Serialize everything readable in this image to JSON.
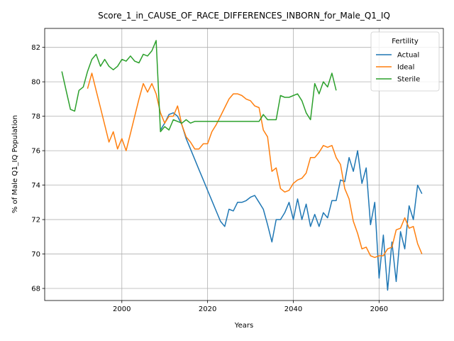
{
  "chart_data": {
    "type": "line",
    "title": "Score_1_in_CAUSE_OF_RACE_DIFFERENCES_INBORN_for_Male_Q1_IQ",
    "xlabel": "Years",
    "ylabel": "% of Male Q1_IQ Population",
    "xlim": [
      1982,
      2075
    ],
    "ylim": [
      67.3,
      83.1
    ],
    "xticks": [
      2000,
      2020,
      2040,
      2060
    ],
    "yticks": [
      68,
      70,
      72,
      74,
      76,
      78,
      80,
      82
    ],
    "grid": true,
    "legend": {
      "title": "Fertility",
      "position": "top-right"
    },
    "series": [
      {
        "name": "Actual",
        "color": "#1f77b4",
        "x": [
          2009,
          2010,
          2011,
          2012,
          2013,
          2014,
          2015,
          2016,
          2017,
          2018,
          2019,
          2020,
          2021,
          2022,
          2023,
          2024,
          2025,
          2026,
          2027,
          2028,
          2029,
          2030,
          2031,
          2032,
          2033,
          2034,
          2035,
          2036,
          2037,
          2038,
          2039,
          2040,
          2041,
          2042,
          2043,
          2044,
          2045,
          2046,
          2047,
          2048,
          2049,
          2050,
          2051,
          2052,
          2053,
          2054,
          2055,
          2056,
          2057,
          2058,
          2059,
          2060,
          2061,
          2062,
          2063,
          2064,
          2065,
          2066,
          2067,
          2068,
          2069,
          2070
        ],
        "values": [
          77.2,
          77.6,
          78.1,
          78.2,
          78.0,
          77.5,
          76.7,
          76.1,
          75.5,
          74.9,
          74.3,
          73.7,
          73.1,
          72.5,
          71.9,
          71.6,
          72.6,
          72.5,
          73.0,
          73.0,
          73.1,
          73.3,
          73.4,
          73.0,
          72.6,
          71.7,
          70.7,
          72.0,
          72.0,
          72.4,
          73.0,
          72.0,
          73.2,
          72.0,
          72.9,
          71.6,
          72.3,
          71.6,
          72.4,
          72.1,
          73.1,
          73.1,
          74.3,
          74.2,
          75.6,
          74.8,
          76.0,
          74.1,
          75.0,
          71.7,
          73.0,
          68.6,
          71.1,
          67.9,
          70.7,
          68.4,
          71.3,
          70.3,
          72.8,
          72.0,
          74.0,
          73.5
        ]
      },
      {
        "name": "Ideal",
        "color": "#ff7f0e",
        "x": [
          1992,
          1993,
          1994,
          1995,
          1996,
          1997,
          1998,
          1999,
          2000,
          2001,
          2002,
          2003,
          2004,
          2005,
          2006,
          2007,
          2008,
          2009,
          2010,
          2011,
          2012,
          2013,
          2014,
          2015,
          2016,
          2017,
          2018,
          2019,
          2020,
          2021,
          2022,
          2023,
          2024,
          2025,
          2026,
          2027,
          2028,
          2029,
          2030,
          2031,
          2032,
          2033,
          2034,
          2035,
          2036,
          2037,
          2038,
          2039,
          2040,
          2041,
          2042,
          2043,
          2044,
          2045,
          2046,
          2047,
          2048,
          2049,
          2050,
          2051,
          2052,
          2053,
          2054,
          2055,
          2056,
          2057,
          2058,
          2059,
          2060,
          2061,
          2062,
          2063,
          2064,
          2065,
          2066,
          2067,
          2068,
          2069,
          2070
        ],
        "values": [
          79.6,
          80.5,
          79.5,
          78.5,
          77.5,
          76.5,
          77.1,
          76.1,
          76.7,
          76.0,
          77.0,
          78.0,
          79.0,
          79.9,
          79.4,
          79.9,
          79.3,
          78.2,
          77.6,
          78.0,
          78.0,
          78.6,
          77.5,
          76.8,
          76.5,
          76.1,
          76.1,
          76.4,
          76.4,
          77.1,
          77.5,
          78.0,
          78.5,
          79.0,
          79.3,
          79.3,
          79.2,
          79.0,
          78.9,
          78.6,
          78.5,
          77.2,
          76.8,
          74.8,
          75.0,
          73.8,
          73.6,
          73.7,
          74.1,
          74.3,
          74.4,
          74.7,
          75.6,
          75.6,
          75.9,
          76.3,
          76.2,
          76.3,
          75.6,
          75.2,
          73.8,
          73.2,
          71.9,
          71.2,
          70.3,
          70.4,
          69.9,
          69.8,
          69.9,
          69.9,
          70.3,
          70.4,
          71.4,
          71.5,
          72.1,
          71.5,
          71.6,
          70.6,
          70.0
        ]
      },
      {
        "name": "Sterile",
        "color": "#2ca02c",
        "x": [
          1986,
          1987,
          1988,
          1989,
          1990,
          1991,
          1992,
          1993,
          1994,
          1995,
          1996,
          1997,
          1998,
          1999,
          2000,
          2001,
          2002,
          2003,
          2004,
          2005,
          2006,
          2007,
          2008,
          2009,
          2010,
          2011,
          2012,
          2013,
          2014,
          2015,
          2016,
          2017,
          2018,
          2019,
          2020,
          2021,
          2022,
          2023,
          2024,
          2025,
          2026,
          2027,
          2028,
          2029,
          2030,
          2031,
          2032,
          2033,
          2034,
          2035,
          2036,
          2037,
          2038,
          2039,
          2040,
          2041,
          2042,
          2043,
          2044,
          2045,
          2046,
          2047,
          2048,
          2049,
          2050
        ],
        "values": [
          80.6,
          79.5,
          78.4,
          78.3,
          79.5,
          79.7,
          80.6,
          81.3,
          81.6,
          80.9,
          81.3,
          80.9,
          80.7,
          80.9,
          81.3,
          81.2,
          81.5,
          81.2,
          81.1,
          81.6,
          81.5,
          81.8,
          82.4,
          77.1,
          77.4,
          77.2,
          77.8,
          77.7,
          77.6,
          77.8,
          77.6,
          77.7,
          77.7,
          77.7,
          77.7,
          77.7,
          77.7,
          77.7,
          77.7,
          77.7,
          77.7,
          77.7,
          77.7,
          77.7,
          77.7,
          77.7,
          77.7,
          78.1,
          77.8,
          77.8,
          77.8,
          79.2,
          79.1,
          79.1,
          79.2,
          79.3,
          78.9,
          78.2,
          77.8,
          79.9,
          79.3,
          80.0,
          79.7,
          80.5,
          79.5
        ]
      }
    ]
  }
}
